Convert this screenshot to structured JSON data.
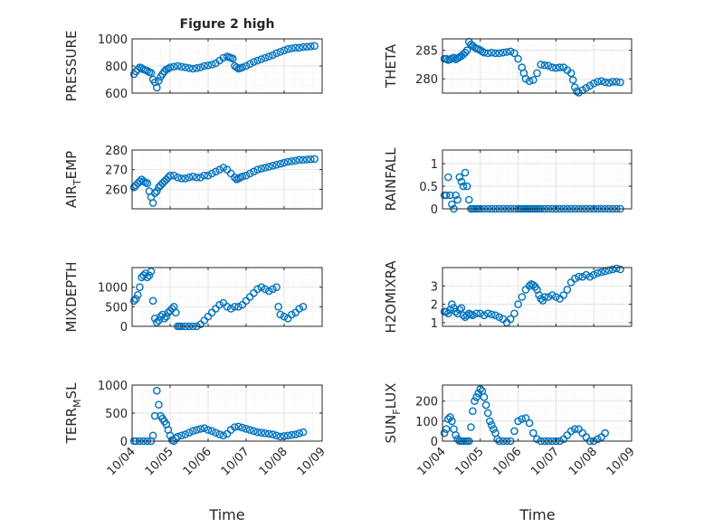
{
  "figure": {
    "title": "Figure 2 high",
    "xlabel": "Time",
    "x_ticks": [
      "10/04",
      "10/05",
      "10/06",
      "10/07",
      "10/08",
      "10/09"
    ],
    "x_tick_values": [
      0,
      1,
      2,
      3,
      4,
      5
    ],
    "xlim": [
      0,
      5
    ]
  },
  "chart_data": [
    {
      "type": "scatter",
      "id": "pressure",
      "ylabel": "PRESSURE",
      "ylim": [
        600,
        1000
      ],
      "yticks": [
        600,
        800,
        1000
      ],
      "yticklabels": [
        "600",
        "800",
        "1000"
      ],
      "color": "#0072bd",
      "x": [
        0.05,
        0.1,
        0.15,
        0.2,
        0.25,
        0.3,
        0.35,
        0.4,
        0.45,
        0.5,
        0.55,
        0.6,
        0.65,
        0.7,
        0.75,
        0.8,
        0.85,
        0.9,
        0.95,
        1.0,
        1.1,
        1.2,
        1.3,
        1.4,
        1.5,
        1.6,
        1.7,
        1.8,
        1.9,
        2.0,
        2.1,
        2.2,
        2.3,
        2.4,
        2.5,
        2.55,
        2.6,
        2.65,
        2.7,
        2.75,
        2.8,
        2.85,
        2.9,
        3.0,
        3.1,
        3.2,
        3.3,
        3.4,
        3.5,
        3.6,
        3.7,
        3.8,
        3.9,
        4.0,
        4.1,
        4.2,
        4.3,
        4.4,
        4.5,
        4.6,
        4.7,
        4.8
      ],
      "y": [
        740,
        760,
        775,
        790,
        785,
        775,
        770,
        765,
        755,
        750,
        700,
        680,
        640,
        690,
        720,
        740,
        760,
        775,
        780,
        790,
        795,
        800,
        795,
        790,
        785,
        780,
        785,
        790,
        800,
        805,
        810,
        820,
        840,
        860,
        870,
        865,
        860,
        855,
        800,
        790,
        780,
        785,
        790,
        800,
        815,
        830,
        840,
        850,
        860,
        870,
        880,
        895,
        905,
        915,
        925,
        930,
        935,
        935,
        940,
        942,
        945,
        948
      ]
    },
    {
      "type": "scatter",
      "id": "theta",
      "ylabel": "THETA",
      "ylim": [
        277.5,
        287
      ],
      "yticks": [
        280,
        285
      ],
      "yticklabels": [
        "280",
        "285"
      ],
      "color": "#0072bd",
      "x": [
        0.05,
        0.1,
        0.15,
        0.2,
        0.25,
        0.3,
        0.35,
        0.4,
        0.45,
        0.5,
        0.55,
        0.6,
        0.65,
        0.7,
        0.75,
        0.8,
        0.85,
        0.9,
        0.95,
        1.0,
        1.05,
        1.1,
        1.2,
        1.3,
        1.4,
        1.5,
        1.6,
        1.7,
        1.8,
        1.9,
        2.0,
        2.1,
        2.15,
        2.2,
        2.3,
        2.4,
        2.5,
        2.6,
        2.7,
        2.8,
        2.9,
        3.0,
        3.1,
        3.2,
        3.3,
        3.4,
        3.45,
        3.5,
        3.55,
        3.6,
        3.7,
        3.8,
        3.9,
        4.0,
        4.1,
        4.2,
        4.3,
        4.4,
        4.5,
        4.6,
        4.7
      ],
      "y": [
        283.5,
        283.5,
        283.3,
        283.4,
        283.6,
        283.7,
        283.4,
        283.6,
        283.8,
        284,
        284.3,
        284.6,
        285,
        286.5,
        286,
        285.8,
        285.5,
        285.3,
        285.2,
        285,
        284.8,
        284.6,
        284.5,
        284.6,
        284.5,
        284.5,
        284.6,
        284.7,
        284.8,
        284.5,
        283.5,
        282,
        281,
        280,
        279.6,
        279.8,
        281,
        282.5,
        282.4,
        282.3,
        282,
        281.9,
        282,
        282,
        281.5,
        281,
        279.8,
        278.5,
        277.8,
        277.6,
        278,
        278.4,
        278.8,
        279.2,
        279.5,
        279.6,
        279.4,
        279.3,
        279.5,
        279.5,
        279.4
      ]
    },
    {
      "type": "scatter",
      "id": "air_temp",
      "ylabel": "AIR_TEMP",
      "ylim": [
        250,
        280
      ],
      "yticks": [
        260,
        270,
        280
      ],
      "yticklabels": [
        "260",
        "270",
        "280"
      ],
      "color": "#0072bd",
      "x": [
        0.05,
        0.1,
        0.15,
        0.2,
        0.25,
        0.3,
        0.35,
        0.4,
        0.45,
        0.5,
        0.55,
        0.6,
        0.65,
        0.7,
        0.75,
        0.8,
        0.85,
        0.9,
        0.95,
        1.0,
        1.1,
        1.2,
        1.3,
        1.4,
        1.5,
        1.6,
        1.7,
        1.8,
        1.9,
        2.0,
        2.1,
        2.2,
        2.3,
        2.4,
        2.5,
        2.6,
        2.7,
        2.75,
        2.8,
        2.85,
        2.9,
        3.0,
        3.1,
        3.2,
        3.3,
        3.4,
        3.5,
        3.6,
        3.7,
        3.8,
        3.9,
        4.0,
        4.1,
        4.2,
        4.3,
        4.4,
        4.5,
        4.6,
        4.7,
        4.8
      ],
      "y": [
        261,
        262,
        263,
        264,
        265,
        264,
        263.5,
        263,
        259,
        256,
        253,
        258,
        259,
        261,
        262,
        263,
        264,
        265,
        266,
        267,
        267,
        266,
        265.5,
        265.5,
        266,
        266.5,
        266,
        266,
        267,
        267,
        268,
        269,
        270,
        271,
        270,
        268,
        266,
        265,
        265.5,
        266,
        266.5,
        267,
        268,
        269,
        270,
        270.5,
        271,
        271.5,
        272,
        272.5,
        273,
        273.5,
        274,
        274.3,
        274.6,
        275,
        275,
        275.2,
        275.3,
        275.5
      ]
    },
    {
      "type": "scatter",
      "id": "rainfall",
      "ylabel": "RAINFALL",
      "ylim": [
        0,
        1.3
      ],
      "yticks": [
        0,
        0.5,
        1
      ],
      "yticklabels": [
        "0",
        "0.5",
        "1"
      ],
      "color": "#0072bd",
      "x": [
        0.05,
        0.1,
        0.15,
        0.2,
        0.25,
        0.3,
        0.35,
        0.4,
        0.45,
        0.5,
        0.55,
        0.6,
        0.65,
        0.7,
        0.75,
        0.8,
        0.85,
        0.9,
        0.95,
        1.0,
        1.1,
        1.2,
        1.3,
        1.4,
        1.5,
        1.6,
        1.7,
        1.8,
        1.9,
        2.0,
        2.05,
        2.1,
        2.15,
        2.2,
        2.25,
        2.3,
        2.35,
        2.4,
        2.45,
        2.5,
        2.55,
        2.6,
        2.7,
        2.8,
        2.9,
        3.0,
        3.1,
        3.2,
        3.3,
        3.4,
        3.5,
        3.6,
        3.7,
        3.8,
        3.9,
        4.0,
        4.1,
        4.2,
        4.3,
        4.4,
        4.5,
        4.6,
        4.7
      ],
      "y": [
        0.3,
        0.3,
        0.7,
        0.3,
        0.1,
        0,
        0.3,
        0.2,
        0.7,
        0.6,
        0.5,
        0.8,
        0.5,
        0.2,
        0,
        0,
        0,
        0,
        0,
        0,
        0,
        0,
        0,
        0,
        0,
        0,
        0,
        0,
        0,
        0,
        0,
        0,
        0,
        0,
        0,
        0,
        0,
        0,
        0,
        0,
        0,
        0,
        0,
        0,
        0,
        0,
        0,
        0,
        0,
        0,
        0,
        0,
        0,
        0,
        0,
        0,
        0,
        0,
        0,
        0,
        0,
        0,
        0
      ]
    },
    {
      "type": "scatter",
      "id": "mixdepth",
      "ylabel": "MIXDEPTH",
      "ylim": [
        0,
        1500
      ],
      "yticks": [
        0,
        500,
        1000
      ],
      "yticklabels": [
        "0",
        "500",
        "1000"
      ],
      "color": "#0072bd",
      "x": [
        0.05,
        0.1,
        0.15,
        0.2,
        0.25,
        0.3,
        0.35,
        0.4,
        0.45,
        0.5,
        0.55,
        0.6,
        0.65,
        0.7,
        0.75,
        0.8,
        0.85,
        0.9,
        0.95,
        1.0,
        1.05,
        1.1,
        1.15,
        1.2,
        1.25,
        1.3,
        1.4,
        1.5,
        1.6,
        1.7,
        1.8,
        1.9,
        2.0,
        2.1,
        2.2,
        2.3,
        2.4,
        2.5,
        2.6,
        2.7,
        2.8,
        2.9,
        3.0,
        3.1,
        3.2,
        3.3,
        3.4,
        3.5,
        3.6,
        3.7,
        3.8,
        3.85,
        3.9,
        4.0,
        4.1,
        4.2,
        4.3,
        4.4,
        4.5
      ],
      "y": [
        650,
        700,
        800,
        1000,
        1250,
        1300,
        1350,
        1250,
        1300,
        1400,
        650,
        200,
        100,
        150,
        250,
        300,
        200,
        250,
        350,
        400,
        450,
        500,
        350,
        0,
        0,
        0,
        0,
        0,
        0,
        0,
        50,
        150,
        250,
        350,
        450,
        550,
        600,
        500,
        450,
        500,
        500,
        550,
        650,
        750,
        850,
        950,
        1000,
        950,
        900,
        950,
        1000,
        500,
        300,
        250,
        200,
        300,
        350,
        450,
        500
      ]
    },
    {
      "type": "scatter",
      "id": "h2omixra",
      "ylabel": "H2OMIXRA",
      "ylim": [
        0.8,
        4
      ],
      "yticks": [
        1,
        2,
        3
      ],
      "yticklabels": [
        "1",
        "2",
        "3"
      ],
      "color": "#0072bd",
      "x": [
        0.05,
        0.1,
        0.15,
        0.2,
        0.25,
        0.3,
        0.35,
        0.4,
        0.45,
        0.5,
        0.55,
        0.6,
        0.65,
        0.7,
        0.75,
        0.8,
        0.9,
        1.0,
        1.1,
        1.2,
        1.3,
        1.4,
        1.5,
        1.6,
        1.7,
        1.8,
        1.9,
        2.0,
        2.1,
        2.2,
        2.3,
        2.35,
        2.4,
        2.45,
        2.5,
        2.55,
        2.6,
        2.65,
        2.7,
        2.8,
        2.9,
        3.0,
        3.1,
        3.2,
        3.3,
        3.4,
        3.5,
        3.6,
        3.7,
        3.8,
        3.9,
        4.0,
        4.1,
        4.2,
        4.3,
        4.4,
        4.5,
        4.6,
        4.7
      ],
      "y": [
        1.6,
        1.6,
        1.5,
        1.7,
        2.0,
        1.8,
        1.6,
        1.5,
        1.7,
        1.8,
        1.4,
        1.3,
        1.4,
        1.5,
        1.45,
        1.4,
        1.5,
        1.5,
        1.4,
        1.5,
        1.45,
        1.4,
        1.3,
        1.2,
        1.0,
        1.2,
        1.5,
        2.0,
        2.4,
        2.8,
        3.0,
        3.1,
        3.05,
        2.95,
        2.8,
        2.5,
        2.3,
        2.2,
        2.4,
        2.4,
        2.5,
        2.4,
        2.3,
        2.5,
        2.8,
        3.2,
        3.4,
        3.5,
        3.5,
        3.6,
        3.5,
        3.6,
        3.7,
        3.75,
        3.8,
        3.85,
        3.9,
        3.95,
        3.9
      ]
    },
    {
      "type": "scatter",
      "id": "terrmsl",
      "ylabel": "TERR_MSL",
      "ylim": [
        0,
        1000
      ],
      "yticks": [
        0,
        500,
        1000
      ],
      "yticklabels": [
        "0",
        "500",
        "1000"
      ],
      "color": "#0072bd",
      "x": [
        0.05,
        0.1,
        0.2,
        0.3,
        0.4,
        0.5,
        0.55,
        0.6,
        0.65,
        0.7,
        0.75,
        0.8,
        0.85,
        0.9,
        0.95,
        1.0,
        1.05,
        1.1,
        1.15,
        1.2,
        1.3,
        1.4,
        1.5,
        1.6,
        1.7,
        1.8,
        1.9,
        2.0,
        2.1,
        2.2,
        2.3,
        2.4,
        2.5,
        2.6,
        2.7,
        2.8,
        2.9,
        3.0,
        3.1,
        3.2,
        3.3,
        3.4,
        3.5,
        3.6,
        3.7,
        3.8,
        3.9,
        4.0,
        4.1,
        4.2,
        4.3,
        4.4,
        4.5
      ],
      "y": [
        0,
        0,
        0,
        0,
        0,
        0,
        100,
        450,
        900,
        650,
        450,
        400,
        350,
        300,
        200,
        100,
        20,
        0,
        50,
        80,
        100,
        120,
        150,
        180,
        200,
        220,
        230,
        200,
        180,
        150,
        120,
        100,
        130,
        200,
        250,
        260,
        240,
        220,
        200,
        180,
        160,
        150,
        140,
        130,
        120,
        100,
        80,
        90,
        100,
        110,
        120,
        140,
        160
      ]
    },
    {
      "type": "scatter",
      "id": "sunflux",
      "ylabel": "SUN_FLUX",
      "ylim": [
        0,
        280
      ],
      "yticks": [
        0,
        100,
        200
      ],
      "yticklabels": [
        "0",
        "100",
        "200"
      ],
      "color": "#0072bd",
      "x": [
        0.05,
        0.1,
        0.15,
        0.2,
        0.25,
        0.3,
        0.35,
        0.4,
        0.45,
        0.5,
        0.55,
        0.6,
        0.65,
        0.7,
        0.75,
        0.8,
        0.85,
        0.9,
        0.95,
        1.0,
        1.05,
        1.1,
        1.15,
        1.2,
        1.25,
        1.3,
        1.35,
        1.4,
        1.45,
        1.5,
        1.6,
        1.7,
        1.8,
        1.9,
        2.0,
        2.1,
        2.2,
        2.3,
        2.4,
        2.5,
        2.6,
        2.7,
        2.8,
        2.9,
        3.0,
        3.1,
        3.2,
        3.3,
        3.4,
        3.5,
        3.6,
        3.7,
        3.8,
        3.9,
        4.0,
        4.1,
        4.2,
        4.3
      ],
      "y": [
        40,
        60,
        110,
        120,
        100,
        60,
        30,
        10,
        0,
        0,
        0,
        0,
        0,
        0,
        70,
        150,
        200,
        220,
        240,
        260,
        250,
        220,
        180,
        140,
        100,
        80,
        60,
        40,
        10,
        0,
        0,
        0,
        0,
        50,
        100,
        110,
        115,
        90,
        40,
        10,
        0,
        0,
        0,
        0,
        0,
        0,
        10,
        30,
        50,
        60,
        60,
        40,
        20,
        0,
        0,
        10,
        20,
        40
      ]
    }
  ]
}
